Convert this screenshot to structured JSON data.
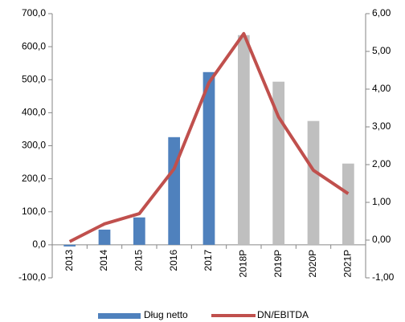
{
  "chart_data": {
    "type": "bar-line",
    "categories": [
      "2013",
      "2014",
      "2015",
      "2016",
      "2017",
      "2018P",
      "2019P",
      "2020P",
      "2021P"
    ],
    "series": [
      {
        "name": "Dług netto",
        "type": "bar",
        "color": "#4f81bd",
        "colors": [
          "#4f81bd",
          "#4f81bd",
          "#4f81bd",
          "#4f81bd",
          "#4f81bd",
          "#bfbfbf",
          "#bfbfbf",
          "#bfbfbf",
          "#bfbfbf"
        ],
        "values": [
          -5,
          46,
          83,
          326,
          523,
          635,
          494,
          375,
          246
        ]
      },
      {
        "name": "DN/EBITDA",
        "type": "line",
        "axis": "y2",
        "color": "#c0504d",
        "values": [
          -0.04,
          0.43,
          0.7,
          1.89,
          4.17,
          5.47,
          3.26,
          1.85,
          1.23
        ]
      }
    ],
    "ylim": [
      -100,
      700
    ],
    "yticks": [
      {
        "value": -100,
        "label": "-100,0"
      },
      {
        "value": 0,
        "label": "0,0"
      },
      {
        "value": 100,
        "label": "100,0"
      },
      {
        "value": 200,
        "label": "200,0"
      },
      {
        "value": 300,
        "label": "300,0"
      },
      {
        "value": 400,
        "label": "400,0"
      },
      {
        "value": 500,
        "label": "500,0"
      },
      {
        "value": 600,
        "label": "600,0"
      },
      {
        "value": 700,
        "label": "700,0"
      }
    ],
    "y2lim": [
      -1,
      6
    ],
    "y2ticks": [
      {
        "value": -1,
        "label": "-1,00"
      },
      {
        "value": 0,
        "label": "0,00"
      },
      {
        "value": 1,
        "label": "1,00"
      },
      {
        "value": 2,
        "label": "2,00"
      },
      {
        "value": 3,
        "label": "3,00"
      },
      {
        "value": 4,
        "label": "4,00"
      },
      {
        "value": 5,
        "label": "5,00"
      },
      {
        "value": 6,
        "label": "6,00"
      }
    ],
    "grid": false,
    "legend": "bottom"
  }
}
